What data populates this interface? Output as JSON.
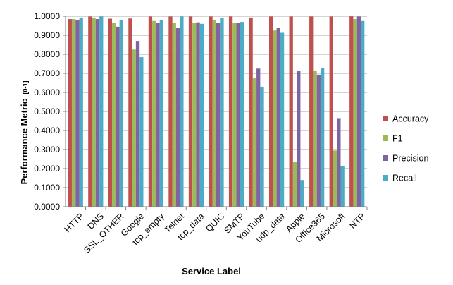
{
  "chart_data": {
    "type": "bar",
    "xlabel": "Service Label",
    "ylabel": "Performance Metric",
    "ylabel_suffix": "[0-1]",
    "ylim": [
      0,
      1
    ],
    "ytick_step": 0.1,
    "ytick_decimals": 4,
    "grid": true,
    "legend_position": "right",
    "categories": [
      "HTTP",
      "DNS",
      "SSL_OTHER",
      "Google",
      "tcp_empty",
      "Telnet",
      "tcp_data",
      "QUIC",
      "SMTP",
      "YouTube",
      "udp_data",
      "Apple",
      "Office365",
      "Microsoft",
      "NTP"
    ],
    "series": [
      {
        "name": "Accuracy",
        "color": "#C0504D",
        "values": [
          0.985,
          0.998,
          0.987,
          0.988,
          0.998,
          0.998,
          0.998,
          0.998,
          0.998,
          0.993,
          0.998,
          0.998,
          0.998,
          0.998,
          0.999
        ]
      },
      {
        "name": "F1",
        "color": "#9BBB59",
        "values": [
          0.985,
          0.993,
          0.965,
          0.825,
          0.975,
          0.965,
          0.963,
          0.98,
          0.965,
          0.675,
          0.925,
          0.235,
          0.715,
          0.295,
          0.985
        ]
      },
      {
        "name": "Precision",
        "color": "#8064A2",
        "values": [
          0.98,
          0.985,
          0.945,
          0.87,
          0.963,
          0.94,
          0.968,
          0.965,
          0.963,
          0.725,
          0.94,
          0.715,
          0.693,
          0.465,
          0.998
        ]
      },
      {
        "name": "Recall",
        "color": "#4BACC6",
        "values": [
          0.993,
          0.998,
          0.978,
          0.785,
          0.98,
          0.998,
          0.96,
          0.99,
          0.97,
          0.63,
          0.913,
          0.14,
          0.728,
          0.213,
          0.975
        ]
      }
    ]
  }
}
